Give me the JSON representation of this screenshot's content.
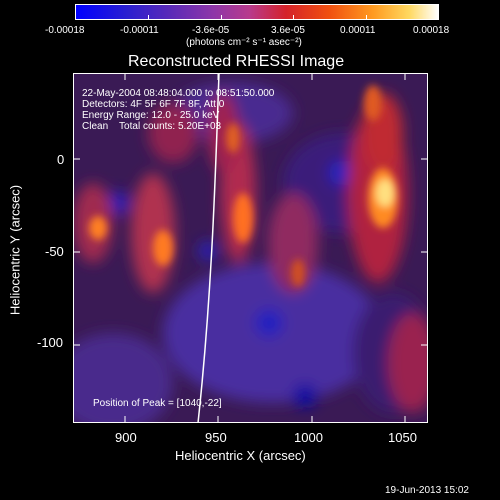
{
  "colorbar": {
    "tick_labels": [
      "-0.00018",
      "-0.00011",
      "-3.6e-05",
      "3.6e-05",
      "0.00011",
      "0.00018"
    ],
    "units": "(photons cm⁻² s⁻¹ asec⁻²)",
    "colors": [
      "#0000ff",
      "#3a2bd0",
      "#7a3cb0",
      "#b040a0",
      "#d02020",
      "#ff6010",
      "#ffc040",
      "#ffffff"
    ]
  },
  "image": {
    "title": "Reconstructed RHESSI Image",
    "header_lines": [
      "22-May-2004 08:48:04.000 to 08:51:50.000",
      "Detectors: 4F 5F 6F 7F 8F, Att 0",
      "Energy Range: 12.0 - 25.0 keV",
      "Clean    Total counts: 5.20E+03"
    ],
    "peak_label": "Position of Peak = [1040,-22]",
    "xlabel": "Heliocentric X (arcsec)",
    "ylabel": "Heliocentric Y (arcsec)",
    "x_ticks": [
      "900",
      "950",
      "1000",
      "1050"
    ],
    "y_ticks": [
      "0",
      "-50",
      "-100"
    ],
    "x_range": [
      868,
      1066
    ],
    "y_range": [
      -150,
      40
    ]
  },
  "footer": {
    "timestamp": "19-Jun-2013 15:02"
  }
}
